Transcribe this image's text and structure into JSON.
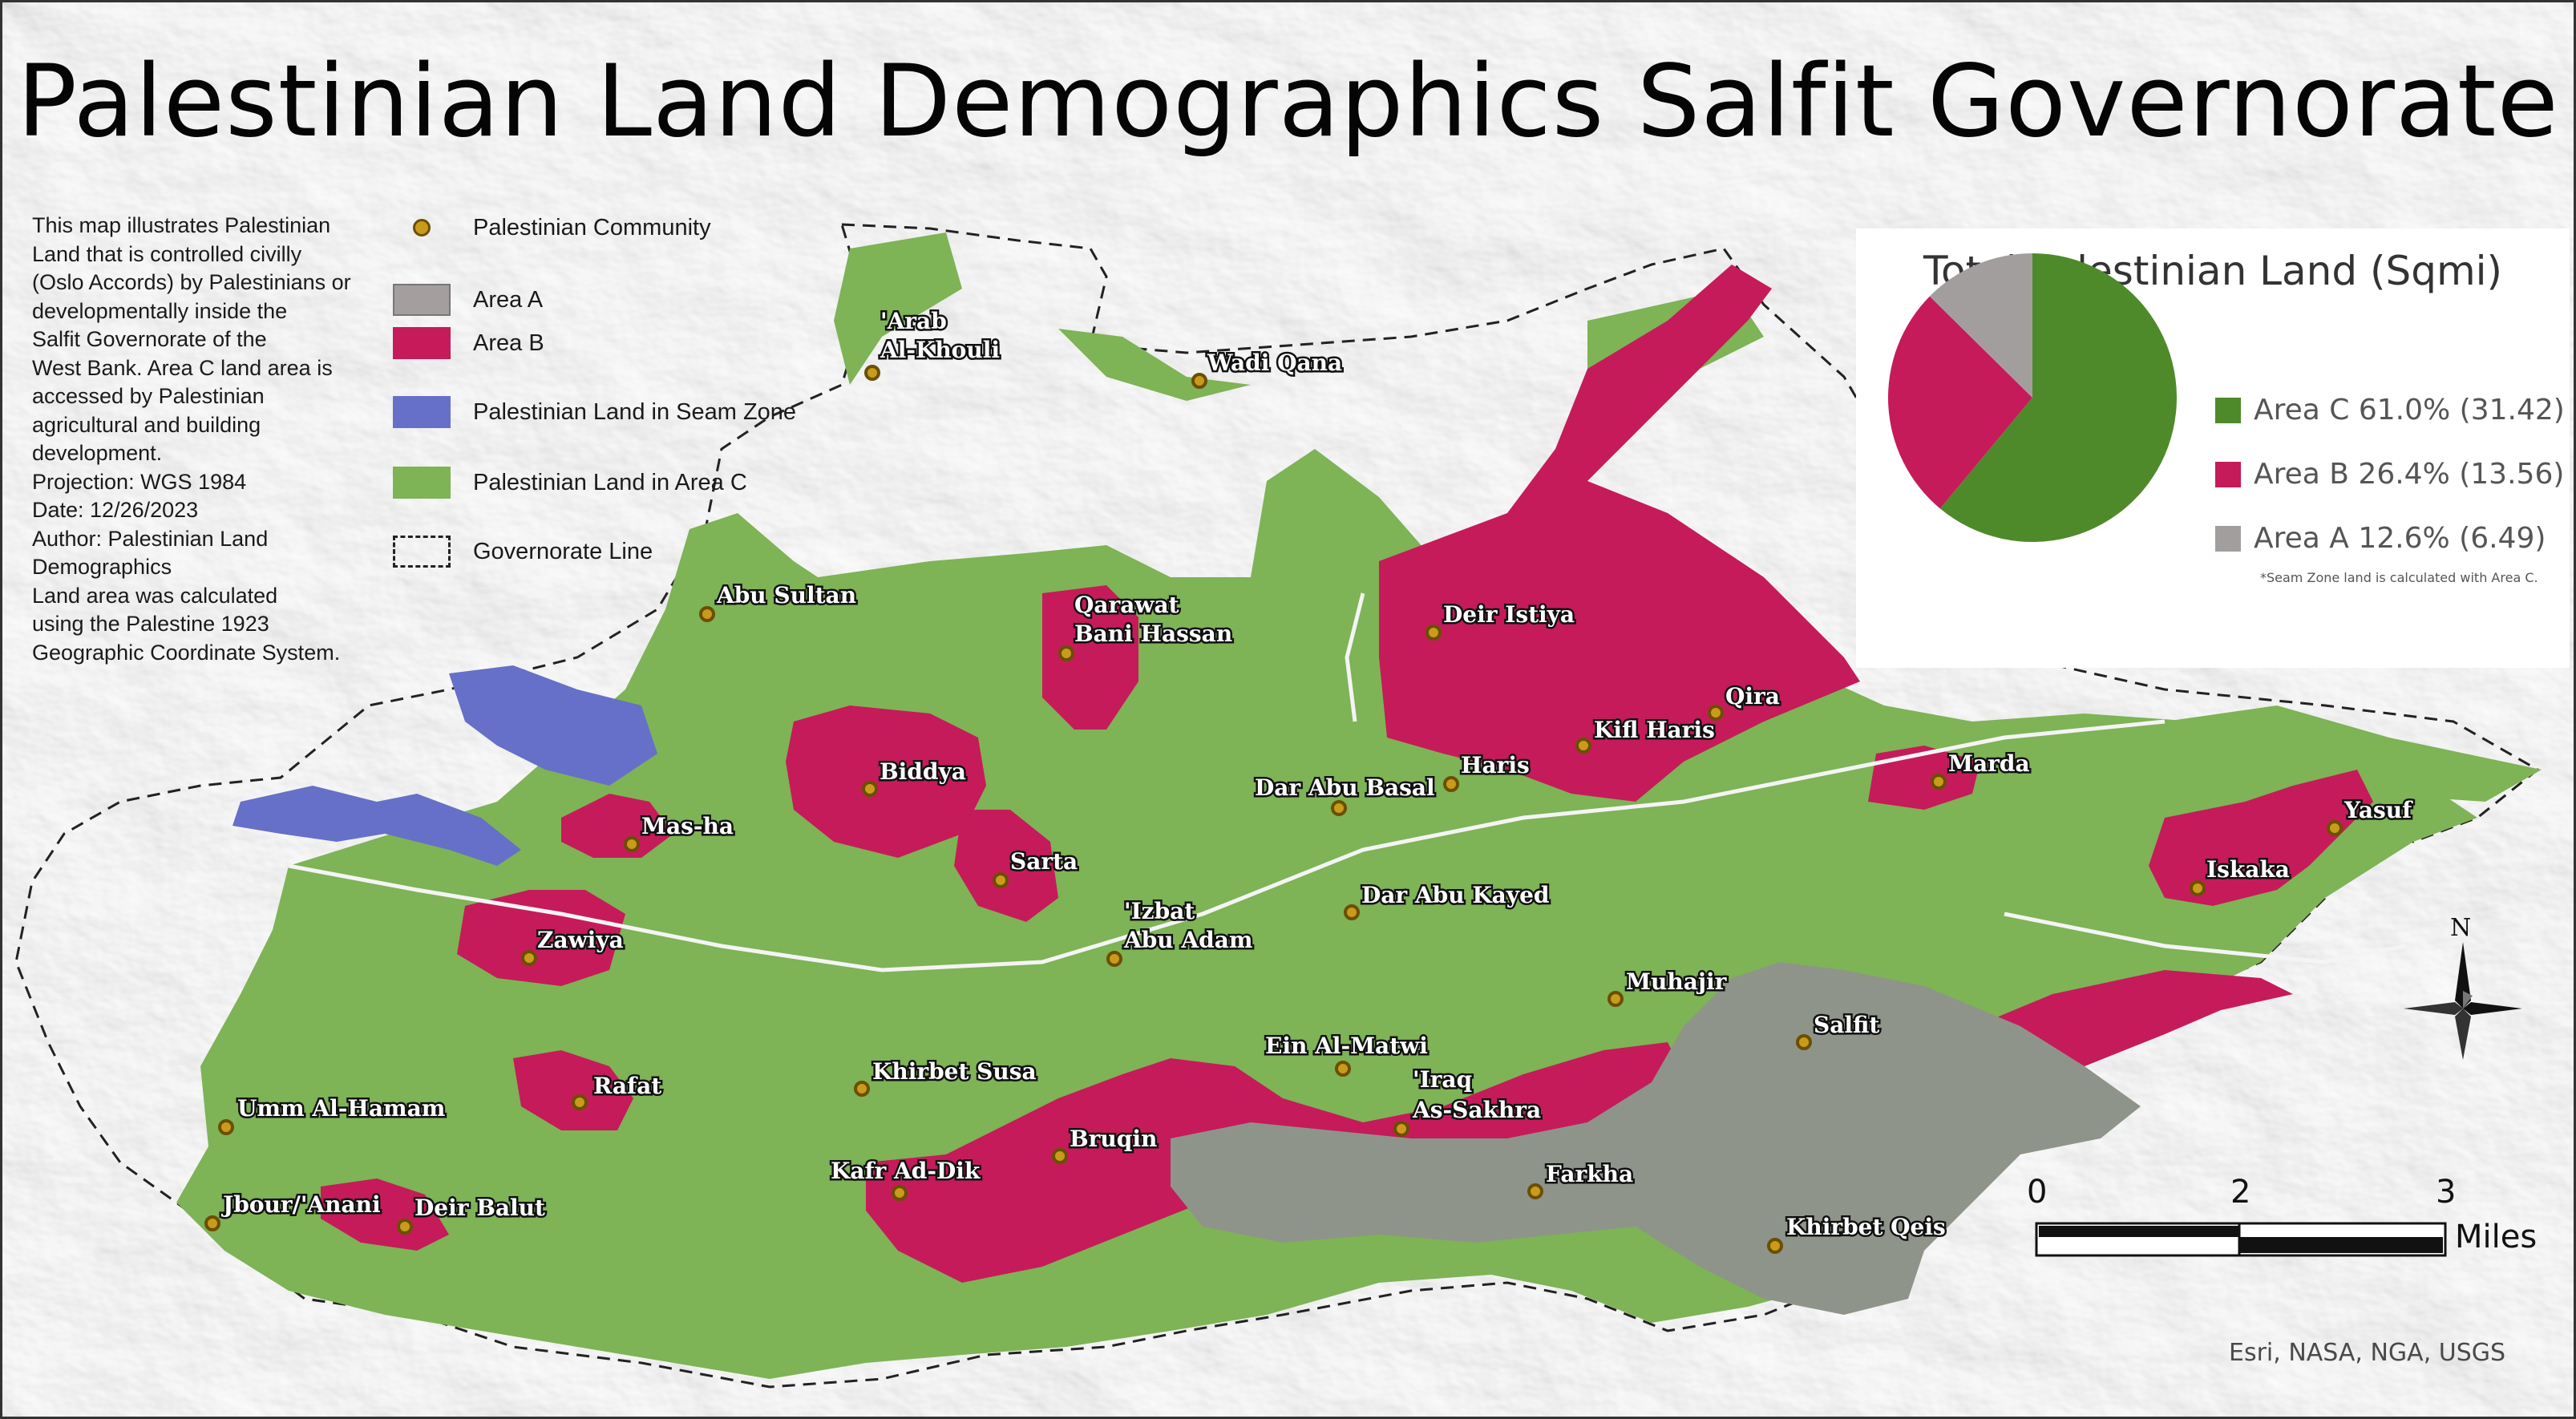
{
  "title": "Palestinian Land Demographics Salfit Governorate",
  "description_lines": [
    "This map illustrates Palestinian",
    "Land that is controlled civilly",
    "(Oslo Accords) by Palestinians or",
    "developmentally inside the",
    "Salfit Governorate of the",
    "West Bank. Area C land area is",
    "accessed by Palestinian",
    "agricultural and building",
    "development.",
    "Projection: WGS 1984",
    "Date: 12/26/2023",
    "Author: Palestinian Land",
    "Demographics",
    "Land area was calculated",
    "using the Palestine 1923",
    "Geographic Coordinate System."
  ],
  "legend": {
    "community": "Palestinian Community",
    "area_a": "Area A",
    "area_b": "Area B",
    "seam": "Palestinian Land in Seam Zone",
    "area_c": "Palestinian Land in Area C",
    "gov_line": "Governorate Line"
  },
  "colors": {
    "area_a": "#8f948a",
    "area_b": "#c51b5a",
    "area_c": "#7eb356",
    "seam": "#6670c8",
    "community": "#c99b1a",
    "pie_c": "#4f8a2a",
    "pie_b": "#c51b5a",
    "pie_a": "#a39e9e"
  },
  "chart_data": {
    "type": "pie",
    "title": "Total Palestinian Land (Sqmi)",
    "slices": [
      {
        "label": "Area C 61.0% (31.42)",
        "name": "Area C",
        "percent": 61.0,
        "value": 31.42
      },
      {
        "label": "Area B 26.4% (13.56)",
        "name": "Area B",
        "percent": 26.4,
        "value": 13.56
      },
      {
        "label": "Area A 12.6% (6.49)",
        "name": "Area A",
        "percent": 12.6,
        "value": 6.49
      }
    ],
    "note": "*Seam Zone land is calculated with Area C."
  },
  "places": [
    {
      "name": "'Arab",
      "name2": "Al-Khouli",
      "id": "arab-al-khouli"
    },
    {
      "name": "Wadi Qana",
      "id": "wadi-qana"
    },
    {
      "name": "Abu Sultan",
      "id": "abu-sultan"
    },
    {
      "name": "Qarawat",
      "name2": "Bani Hassan",
      "id": "qarawat-bani-hassan"
    },
    {
      "name": "Deir Istiya",
      "id": "deir-istiya"
    },
    {
      "name": "Qira",
      "id": "qira"
    },
    {
      "name": "Kifl Haris",
      "id": "kifl-haris"
    },
    {
      "name": "Haris",
      "id": "haris"
    },
    {
      "name": "Marda",
      "id": "marda"
    },
    {
      "name": "Biddya",
      "id": "biddya"
    },
    {
      "name": "Dar Abu Basal",
      "id": "dar-abu-basal"
    },
    {
      "name": "Yasuf",
      "id": "yasuf"
    },
    {
      "name": "Iskaka",
      "id": "iskaka"
    },
    {
      "name": "Mas-ha",
      "id": "mas-ha"
    },
    {
      "name": "Sarta",
      "id": "sarta"
    },
    {
      "name": "Dar Abu Kayed",
      "id": "dar-abu-kayed"
    },
    {
      "name": "'Izbat",
      "name2": "Abu Adam",
      "id": "izbat-abu-adam"
    },
    {
      "name": "Zawiya",
      "id": "zawiya"
    },
    {
      "name": "Muhajir",
      "id": "muhajir"
    },
    {
      "name": "Salfit",
      "id": "salfit"
    },
    {
      "name": "Ein Al-Matwi",
      "id": "ein-al-matwi"
    },
    {
      "name": "'Iraq",
      "name2": "As-Sakhra",
      "id": "iraq-as-sakhra"
    },
    {
      "name": "Rafat",
      "id": "rafat"
    },
    {
      "name": "Khirbet Susa",
      "id": "khirbet-susa"
    },
    {
      "name": "Umm Al-Hamam",
      "id": "umm-al-hamam"
    },
    {
      "name": "Bruqin",
      "id": "bruqin"
    },
    {
      "name": "Kafr Ad-Dik",
      "id": "kafr-ad-dik"
    },
    {
      "name": "Farkha",
      "id": "farkha"
    },
    {
      "name": "Jbour/'Anani",
      "id": "jbour-anani"
    },
    {
      "name": "Deir Balut",
      "id": "deir-balut"
    },
    {
      "name": "Khirbet Qeis",
      "id": "khirbet-qeis"
    }
  ],
  "scale": {
    "ticks": [
      "0",
      "2",
      "3"
    ],
    "unit": "Miles"
  },
  "north_label": "N",
  "attribution": "Esri, NASA, NGA, USGS"
}
